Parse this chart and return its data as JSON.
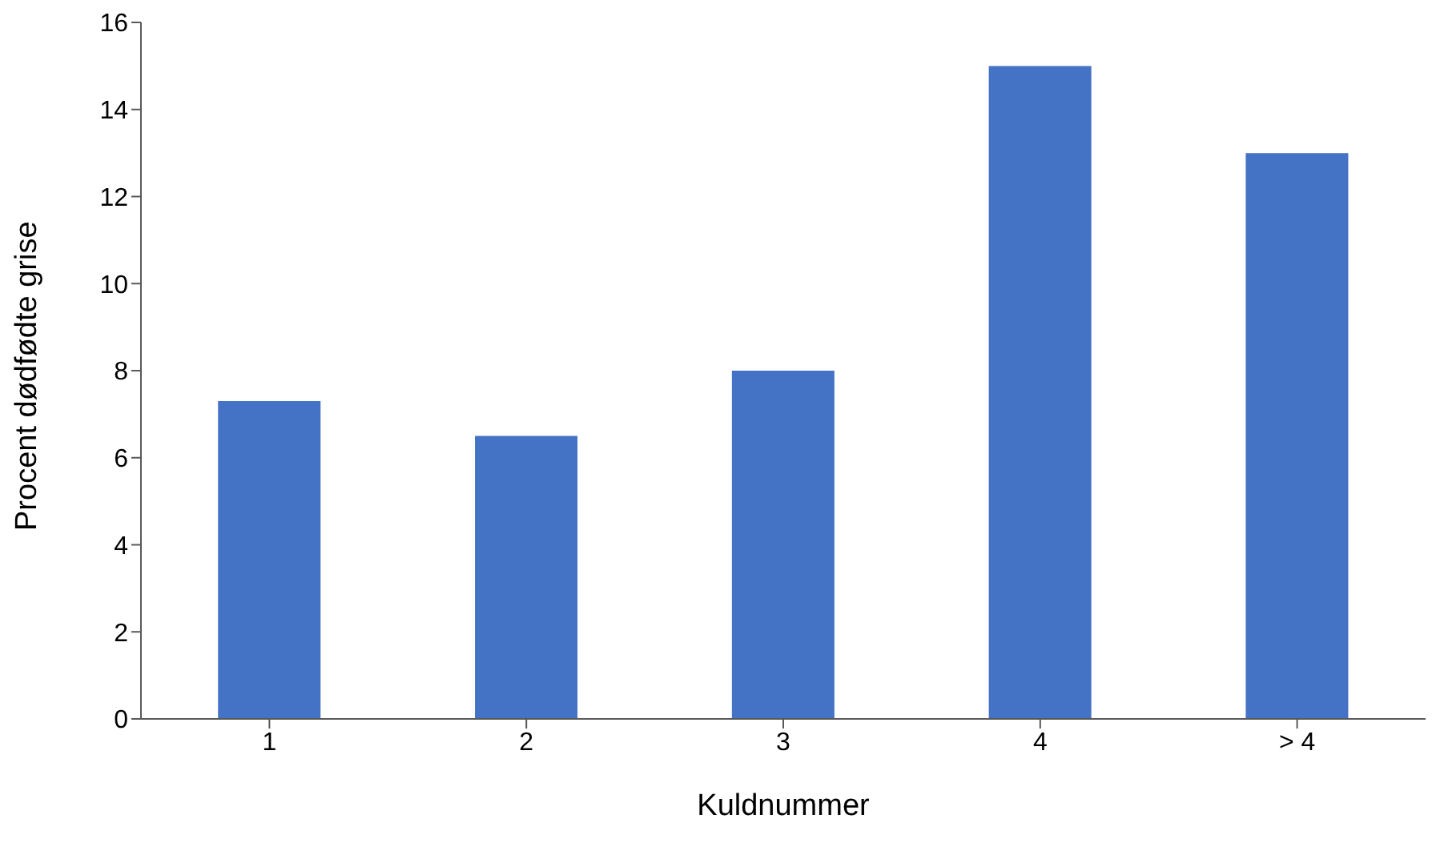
{
  "chart_data": {
    "type": "bar",
    "xlabel": "Kuldnummer",
    "ylabel": "Procent dødfødte grise",
    "categories": [
      "1",
      "2",
      "3",
      "4",
      "> 4"
    ],
    "values": [
      7.3,
      6.5,
      8.0,
      15.0,
      13.0
    ],
    "color": "#4472c4",
    "ylim": [
      0,
      16
    ],
    "yticks": [
      0,
      2,
      4,
      6,
      8,
      10,
      12,
      14,
      16
    ],
    "grid": false,
    "legend": false
  }
}
